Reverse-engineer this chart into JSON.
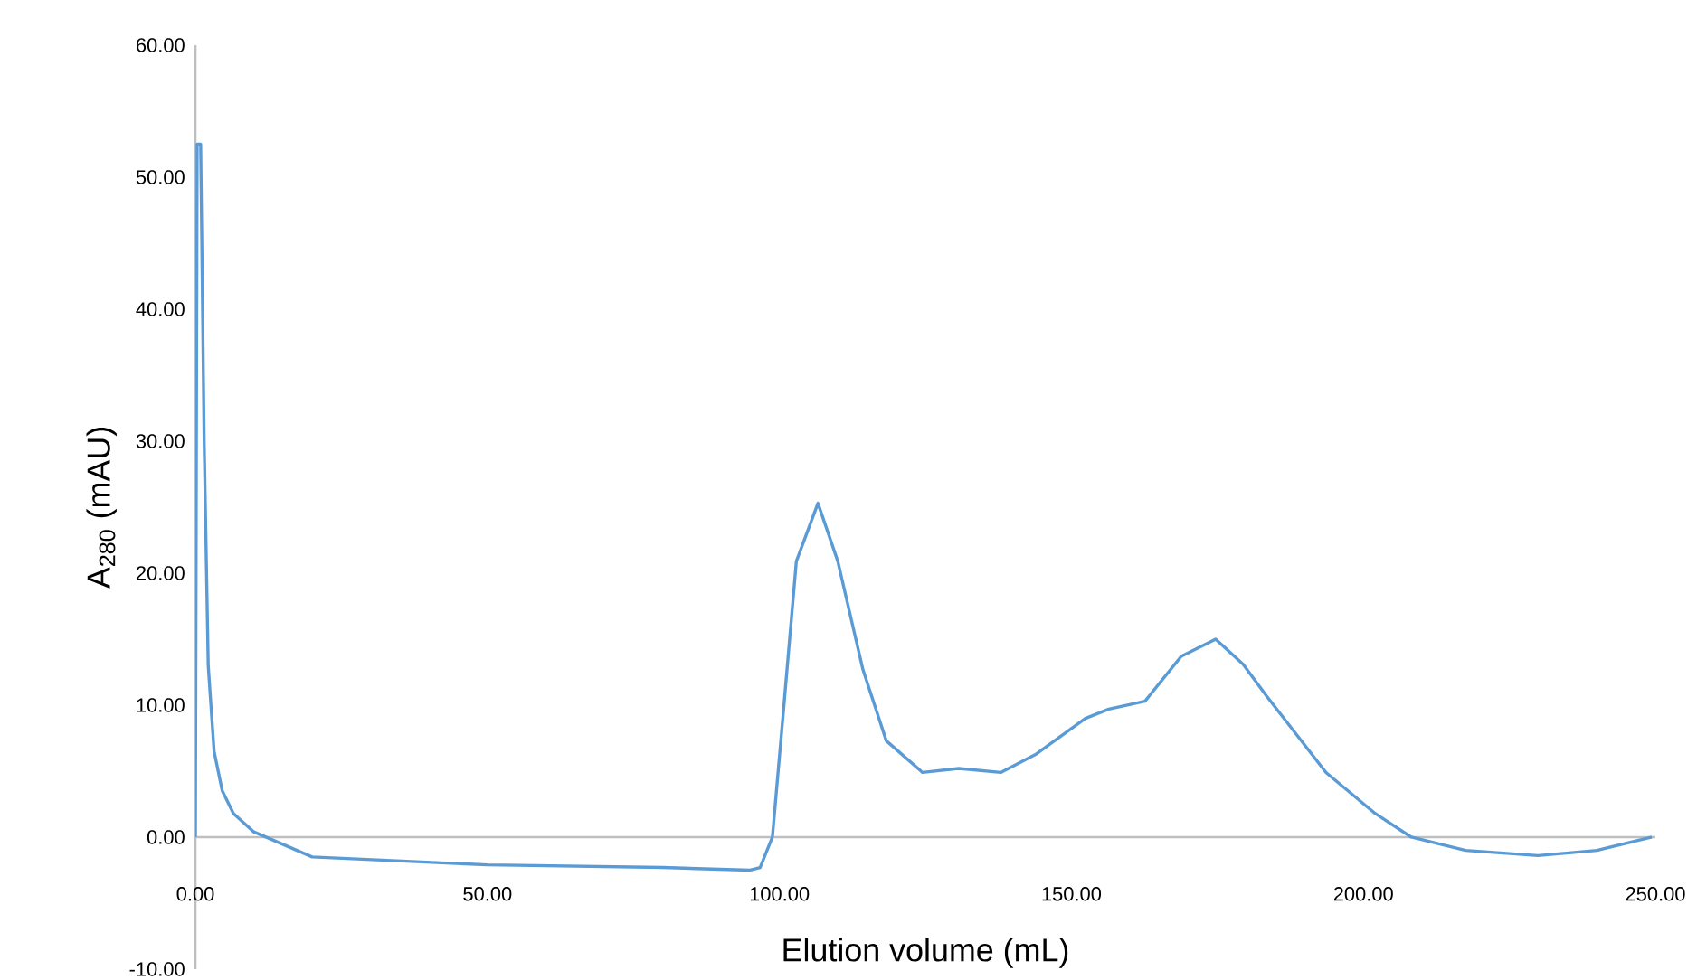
{
  "chart_data": {
    "type": "line",
    "xlabel": "Elution volume (mL)",
    "ylabel": "A$_{280}$ (mAU)",
    "xlim": [
      0,
      250
    ],
    "ylim": [
      -10,
      60
    ],
    "xticks": [
      {
        "value": 0,
        "label": "0.00"
      },
      {
        "value": 50,
        "label": "50.00"
      },
      {
        "value": 100,
        "label": "100.00"
      },
      {
        "value": 150,
        "label": "150.00"
      },
      {
        "value": 200,
        "label": "200.00"
      },
      {
        "value": 250,
        "label": "250.00"
      }
    ],
    "yticks": [
      {
        "value": -10,
        "label": "-10.00"
      },
      {
        "value": 0,
        "label": "0.00"
      },
      {
        "value": 10,
        "label": "10.00"
      },
      {
        "value": 20,
        "label": "20.00"
      },
      {
        "value": 30,
        "label": "30.00"
      },
      {
        "value": 40,
        "label": "40.00"
      },
      {
        "value": 50,
        "label": "50.00"
      },
      {
        "value": 60,
        "label": "60.00"
      }
    ],
    "grid": false,
    "marker": "none",
    "line_style": "solid",
    "series": [
      {
        "color": "#5b9bd5",
        "x": [
          0,
          0.3,
          0.9,
          1.5,
          2.2,
          3.2,
          4.6,
          6.5,
          10,
          20,
          50,
          80,
          95,
          96.7,
          98.8,
          100.7,
          102.9,
          106.6,
          110,
          114.3,
          118.3,
          124.5,
          130.7,
          137.9,
          144,
          152.4,
          156.4,
          162.6,
          168.8,
          174.7,
          179.4,
          183.4,
          193.6,
          202,
          208.2,
          217.5,
          229.9,
          240,
          249.4
        ],
        "values": [
          0,
          52.5,
          52.5,
          30,
          13,
          6.5,
          3.5,
          1.8,
          0.4,
          -1.5,
          -2.1,
          -2.3,
          -2.5,
          -2.3,
          0,
          9.6,
          20.9,
          25.3,
          20.9,
          12.7,
          7.3,
          4.9,
          5.2,
          4.9,
          6.3,
          9.0,
          9.7,
          10.3,
          13.7,
          15.0,
          13.1,
          10.7,
          4.9,
          1.8,
          0,
          -1.0,
          -1.4,
          -1.0,
          0
        ]
      }
    ]
  }
}
